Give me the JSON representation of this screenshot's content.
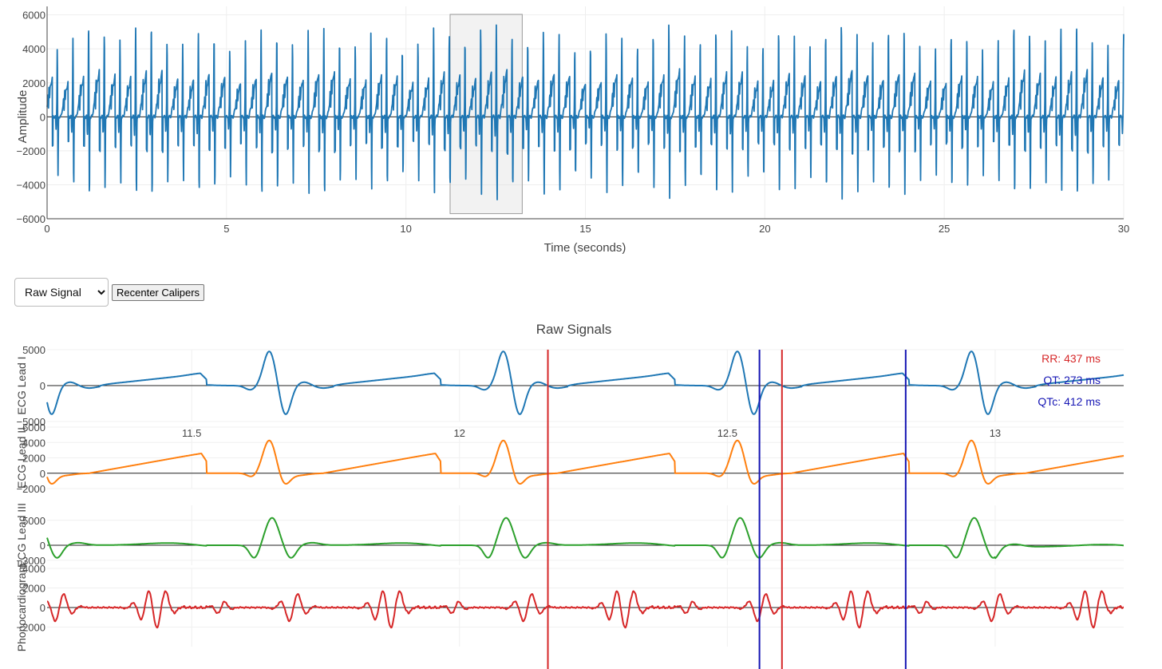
{
  "controls": {
    "mode_select": {
      "selected": "Raw Signal"
    },
    "recenter_label": "Recenter Calipers"
  },
  "chart_data": [
    {
      "type": "line",
      "xlabel": "Time (seconds)",
      "ylabel": "Amplitude",
      "xlim": [
        0,
        30
      ],
      "ylim": [
        -6000,
        6500
      ],
      "x_ticks": [
        0,
        5,
        10,
        15,
        20,
        25,
        30
      ],
      "y_ticks": [
        -6000,
        -4000,
        -2000,
        0,
        2000,
        4000,
        6000
      ],
      "grid": true,
      "line_color": "#1f77b4",
      "selection_window": [
        11.23,
        13.24
      ],
      "series": [
        {
          "beat_period_s": 0.437,
          "spike_max": 5400,
          "spike_min": -5100
        }
      ]
    },
    {
      "type": "line",
      "title": "Raw Signals",
      "xlim": [
        11.23,
        13.24
      ],
      "x_ticks": [
        11.5,
        12,
        12.5,
        13
      ],
      "grid": true,
      "series": [
        {
          "name": "ECG Lead I",
          "color": "#1f77b4",
          "ylim": [
            -5000,
            5000
          ],
          "y_ticks": [
            5000,
            0,
            -5000
          ]
        },
        {
          "name": "ECG Lead II",
          "color": "#ff7f0e",
          "ylim": [
            -2000,
            6000
          ],
          "y_ticks": [
            6000,
            4000,
            2000,
            0,
            -2000
          ]
        },
        {
          "name": "ECG Lead III",
          "color": "#2ca02c",
          "ylim": [
            -4000,
            8000
          ],
          "y_ticks": [
            5000,
            0,
            -3000
          ]
        },
        {
          "name": "Phonocardiogram",
          "color": "#d62728",
          "ylim": [
            -4000,
            4000
          ],
          "y_ticks": [
            4000,
            2000,
            0,
            -2000
          ]
        }
      ],
      "calipers": {
        "rr": {
          "start": 12.165,
          "end": 12.602,
          "color": "#d62728"
        },
        "qt": {
          "start": 12.56,
          "end": 12.833,
          "color": "#1616b4"
        }
      },
      "annotations": {
        "rr": "RR: 437 ms",
        "qt": "QT: 273 ms",
        "qtc": "QTc: 412 ms"
      }
    }
  ]
}
